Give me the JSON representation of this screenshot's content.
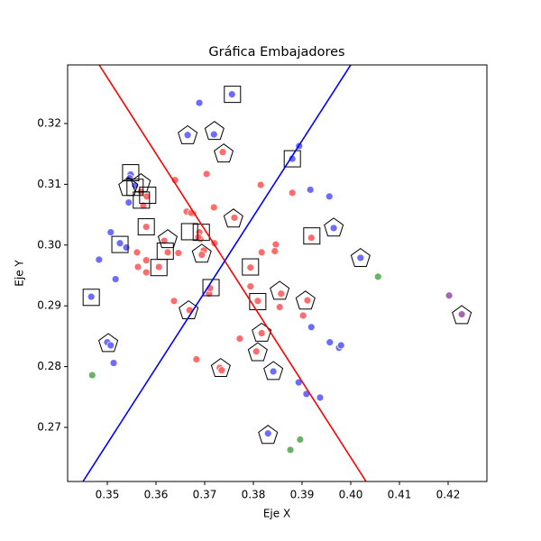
{
  "chart_data": {
    "type": "scatter",
    "title": "Gráfica Embajadores",
    "xlabel": "Eje X",
    "ylabel": "Eje Y",
    "xlim": [
      0.34185,
      0.42796
    ],
    "ylim": [
      0.2611,
      0.32964
    ],
    "xticks": [
      0.35,
      0.36,
      0.37,
      0.38,
      0.39,
      {
        "value": 0.4,
        "label": "0.40"
      },
      0.41,
      0.42
    ],
    "yticks": [
      0.27,
      0.28,
      0.29,
      {
        "value": 0.3,
        "label": "0.30"
      },
      0.31,
      0.32
    ],
    "series": [
      {
        "color": "#6464ff",
        "marker": "o",
        "x": [
          0.3689,
          0.3719,
          0.3665,
          0.3756,
          0.388,
          0.3894,
          0.3917,
          0.3956,
          0.3965,
          0.402,
          0.3548,
          0.3546,
          0.3557,
          0.3544,
          0.3507,
          0.3526,
          0.3539,
          0.3483,
          0.3517,
          0.3467,
          0.35,
          0.3507,
          0.3513,
          0.3919,
          0.3893,
          0.3909,
          0.3937,
          0.3957,
          0.3976,
          0.398,
          0.383,
          0.3841
        ],
        "y": [
          0.3234,
          0.3182,
          0.3181,
          0.3248,
          0.3142,
          0.3163,
          0.3091,
          0.308,
          0.3028,
          0.2979,
          0.3116,
          0.311,
          0.3098,
          0.307,
          0.3021,
          0.3003,
          0.2996,
          0.2976,
          0.2944,
          0.2915,
          0.284,
          0.2835,
          0.2806,
          0.2865,
          0.2774,
          0.2755,
          0.2749,
          0.284,
          0.2831,
          0.2835,
          0.269,
          0.2792
        ]
      },
      {
        "color": "#ff6464",
        "marker": "o",
        "x": [
          0.3639,
          0.3704,
          0.3719,
          0.3663,
          0.3676,
          0.3689,
          0.3691,
          0.372,
          0.3687,
          0.3737,
          0.3815,
          0.388,
          0.3919,
          0.3817,
          0.3846,
          0.3844,
          0.3761,
          0.3617,
          0.3624,
          0.3606,
          0.358,
          0.3561,
          0.358,
          0.358,
          0.3563,
          0.3672,
          0.3698,
          0.3694,
          0.3646,
          0.3709,
          0.3711,
          0.3637,
          0.3669,
          0.3794,
          0.3794,
          0.3809,
          0.3857,
          0.3854,
          0.3817,
          0.3772,
          0.3683,
          0.3806,
          0.3902,
          0.3911,
          0.3569,
          0.3581,
          0.3574,
          0.3731,
          0.3735
        ],
        "y": [
          0.3107,
          0.3117,
          0.3062,
          0.3055,
          0.3052,
          0.3021,
          0.301,
          0.3003,
          0.3013,
          0.3153,
          0.3099,
          0.3086,
          0.3012,
          0.2988,
          0.3001,
          0.299,
          0.3045,
          0.3007,
          0.2988,
          0.2964,
          0.303,
          0.2988,
          0.2975,
          0.2955,
          0.2964,
          0.3053,
          0.2991,
          0.2984,
          0.2987,
          0.292,
          0.2929,
          0.2908,
          0.2893,
          0.2963,
          0.2932,
          0.2908,
          0.292,
          0.2898,
          0.2855,
          0.2846,
          0.2812,
          0.2825,
          0.2884,
          0.2909,
          0.3088,
          0.308,
          0.3065,
          0.2798,
          0.2794
        ]
      },
      {
        "color": "#5fb05f",
        "marker": "o",
        "x": [
          0.3469,
          0.4056,
          0.3876,
          0.3896
        ],
        "y": [
          0.2786,
          0.2948,
          0.2663,
          0.268
        ]
      },
      {
        "color": "#a05fb0",
        "marker": "o",
        "x": [
          0.4202,
          0.4228
        ],
        "y": [
          0.2917,
          0.2886
        ]
      },
      {
        "color": "#000000",
        "marker": "s",
        "x": [
          0.3548,
          0.3757,
          0.388,
          0.3557,
          0.3583,
          0.357,
          0.358,
          0.3669,
          0.3693,
          0.3619,
          0.3526,
          0.3606,
          0.392,
          0.3794,
          0.3713,
          0.3809,
          0.3467
        ],
        "y": [
          0.3119,
          0.3248,
          0.3142,
          0.3095,
          0.3082,
          0.3074,
          0.303,
          0.3022,
          0.3021,
          0.299,
          0.3001,
          0.2963,
          0.3015,
          0.2964,
          0.293,
          0.2907,
          0.2914
        ]
      },
      {
        "color": "#000000",
        "marker": "p",
        "x": [
          0.372,
          0.3665,
          0.3739,
          0.3543,
          0.3569,
          0.3624,
          0.3759,
          0.3965,
          0.402,
          0.3694,
          0.3854,
          0.3907,
          0.3667,
          0.3502,
          0.3817,
          0.3809,
          0.3841,
          0.3733,
          0.383,
          0.4228
        ],
        "y": [
          0.3187,
          0.318,
          0.315,
          0.3095,
          0.3101,
          0.3009,
          0.3043,
          0.3028,
          0.2978,
          0.2985,
          0.2924,
          0.2908,
          0.2892,
          0.2838,
          0.2855,
          0.2823,
          0.2792,
          0.2797,
          0.2687,
          0.2884
        ]
      }
    ],
    "lines": [
      {
        "color": "#ff0000",
        "x": [
          0.34833,
          0.40315
        ],
        "y": [
          0.32964,
          0.2611
        ]
      },
      {
        "color": "#0000ff",
        "x": [
          0.345,
          0.4
        ],
        "y": [
          0.2611,
          0.32964
        ]
      }
    ]
  }
}
